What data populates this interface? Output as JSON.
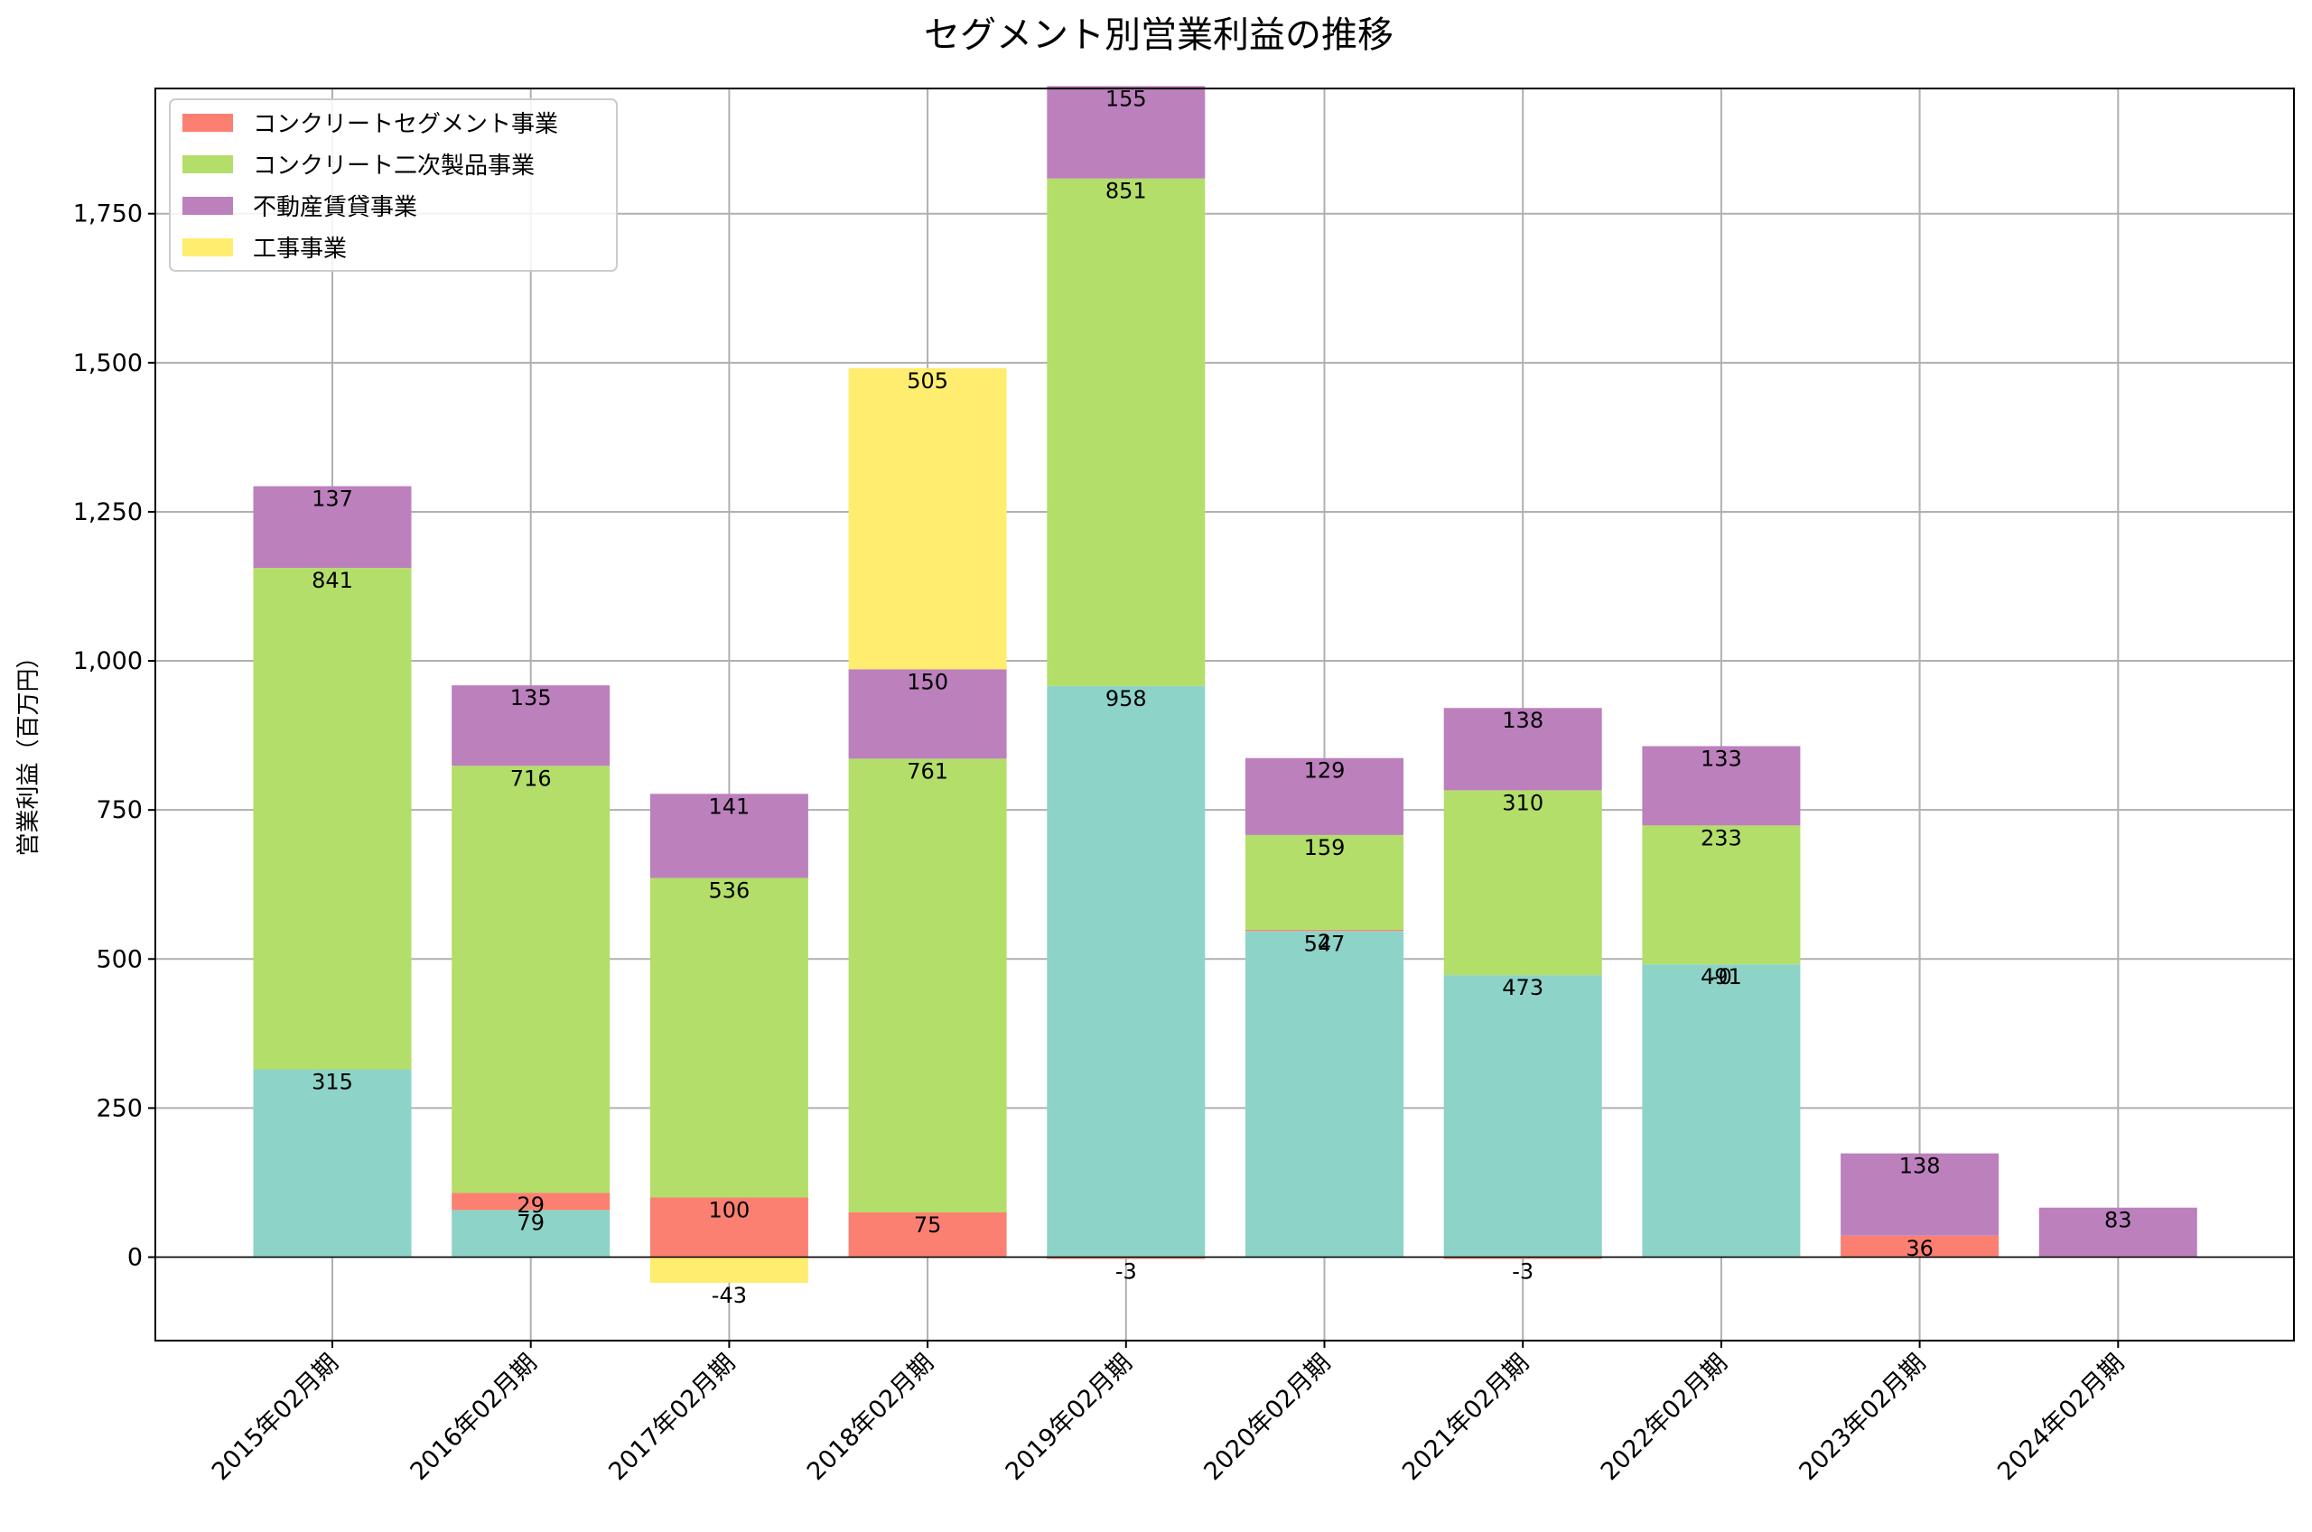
{
  "chart_data": {
    "type": "bar",
    "stacked": true,
    "title": "セグメント別営業利益の推移",
    "xlabel": "",
    "ylabel": "営業利益（百万円）",
    "ylim": [
      -140,
      1960
    ],
    "yticks": [
      0,
      250,
      500,
      750,
      1000,
      1250,
      1500,
      1750
    ],
    "ytick_labels": [
      "0",
      "250",
      "500",
      "750",
      "1,000",
      "1,250",
      "1,500",
      "1,750"
    ],
    "grid": true,
    "legend_position": "top-left",
    "categories": [
      "2015年02月期",
      "2016年02月期",
      "2017年02月期",
      "2018年02月期",
      "2019年02月期",
      "2020年02月期",
      "2021年02月期",
      "2022年02月期",
      "2023年02月期",
      "2024年02月期"
    ],
    "series": [
      {
        "name": "",
        "color": "#8dd3c7",
        "values": [
          315,
          79,
          null,
          null,
          958,
          547,
          473,
          491,
          null,
          null
        ],
        "labels": [
          "315",
          "79",
          "",
          "",
          "958",
          "547",
          "473",
          "491",
          "",
          ""
        ]
      },
      {
        "name": "コンクリートセグメント事業",
        "color": "#fb8072",
        "values": [
          0,
          29,
          100,
          75,
          -3,
          2,
          -3,
          0,
          36,
          null
        ],
        "labels": [
          "",
          "29",
          "100",
          "75",
          "-3",
          "2",
          "-3",
          "-0",
          "36",
          ""
        ]
      },
      {
        "name": "コンクリート二次製品事業",
        "color": "#b3de69",
        "values": [
          841,
          716,
          536,
          761,
          851,
          159,
          310,
          233,
          null,
          null
        ],
        "labels": [
          "841",
          "716",
          "536",
          "761",
          "851",
          "159",
          "310",
          "233",
          "",
          ""
        ]
      },
      {
        "name": "不動産賃貸事業",
        "color": "#bc80bd",
        "values": [
          137,
          135,
          141,
          150,
          155,
          129,
          138,
          133,
          138,
          83
        ],
        "labels": [
          "137",
          "135",
          "141",
          "150",
          "155",
          "129",
          "138",
          "133",
          "138",
          "83"
        ]
      },
      {
        "name": "工事事業",
        "color": "#ffed6f",
        "values": [
          null,
          null,
          -43,
          505,
          null,
          null,
          null,
          null,
          null,
          null
        ],
        "labels": [
          "",
          "",
          "-43",
          "505",
          "",
          "",
          "",
          "",
          "",
          ""
        ]
      }
    ]
  }
}
